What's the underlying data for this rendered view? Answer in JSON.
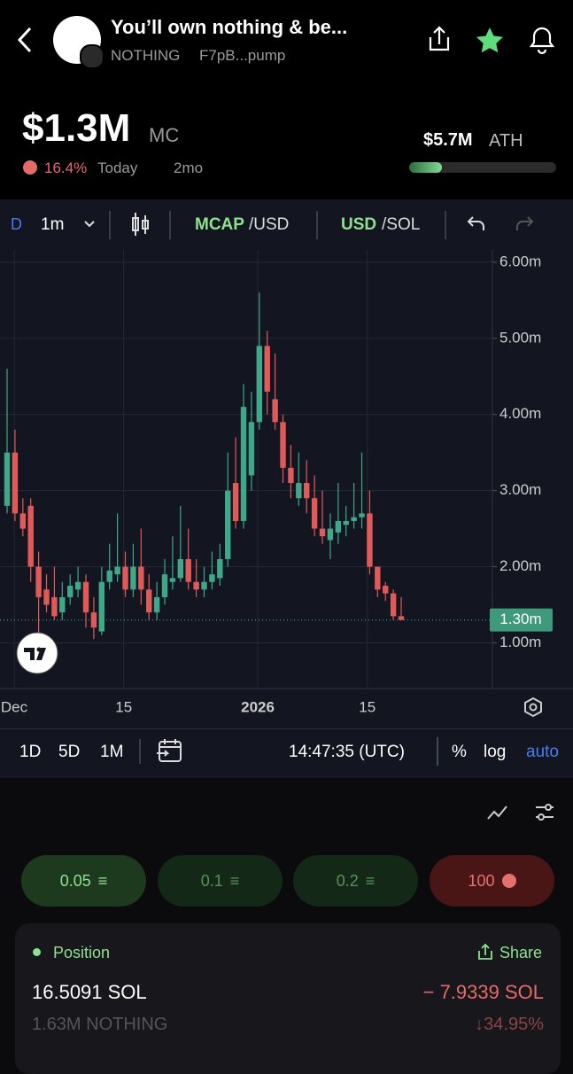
{
  "header": {
    "title": "You’ll own nothing & be...",
    "ticker": "NOTHING",
    "address": "F7pB...pump",
    "market_cap": "$1.3M",
    "market_cap_label": "MC",
    "change": "16.4%",
    "period": "Today",
    "age": "2mo",
    "ath": "$5.7M",
    "ath_label": "ATH"
  },
  "toolbar": {
    "series_prefix": "D",
    "interval": "1m",
    "mcap": "MCAP",
    "mcap_quote": "/USD",
    "usd": "USD",
    "usd_quote": "/SOL"
  },
  "chart_data": {
    "type": "candlestick",
    "open": [
      2.8,
      3.5,
      2.7,
      2.8,
      2.0,
      1.7,
      1.6,
      1.4,
      1.6,
      1.7,
      1.8,
      1.4,
      1.15,
      1.8,
      1.9,
      2.0,
      1.7,
      2.0,
      1.7,
      1.4,
      1.6,
      1.8,
      1.85,
      2.1,
      1.8,
      1.7,
      1.8,
      1.85,
      2.1,
      3.1,
      2.6,
      3.2,
      3.9,
      4.9,
      4.2,
      3.9,
      3.3,
      2.9,
      3.1,
      2.9,
      2.5,
      2.35,
      2.45,
      2.55,
      2.6,
      2.65,
      2.7,
      2.0,
      1.75,
      1.65,
      1.35
    ],
    "high": [
      4.6,
      3.8,
      2.9,
      2.9,
      2.2,
      1.9,
      2.0,
      1.8,
      1.9,
      2.0,
      1.9,
      1.6,
      2.0,
      2.3,
      2.7,
      2.2,
      2.3,
      2.5,
      1.9,
      1.8,
      2.1,
      2.4,
      2.8,
      2.5,
      2.1,
      2.0,
      2.2,
      2.3,
      3.5,
      3.7,
      4.4,
      4.3,
      5.6,
      5.1,
      4.8,
      4.0,
      3.6,
      3.5,
      3.4,
      3.2,
      3.0,
      2.7,
      3.1,
      2.8,
      3.1,
      3.5,
      3.0,
      2.0,
      1.8,
      1.7,
      1.6
    ],
    "low": [
      2.7,
      2.6,
      2.4,
      1.8,
      1.1,
      1.4,
      1.3,
      1.3,
      1.5,
      1.6,
      1.2,
      1.05,
      1.1,
      1.7,
      1.8,
      1.6,
      1.6,
      1.5,
      1.3,
      1.3,
      1.5,
      1.7,
      1.8,
      1.7,
      1.6,
      1.6,
      1.7,
      1.75,
      2.0,
      2.5,
      2.5,
      3.0,
      3.8,
      4.0,
      3.8,
      3.1,
      2.9,
      2.8,
      2.7,
      2.4,
      2.3,
      2.1,
      2.3,
      2.4,
      2.5,
      2.5,
      1.9,
      1.6,
      1.55,
      1.3,
      1.3
    ],
    "close": [
      3.5,
      2.7,
      2.5,
      2.0,
      1.6,
      1.5,
      1.35,
      1.6,
      1.75,
      1.8,
      1.4,
      1.2,
      1.8,
      1.95,
      2.0,
      1.7,
      2.0,
      1.7,
      1.4,
      1.6,
      1.9,
      1.85,
      2.1,
      1.8,
      1.7,
      1.8,
      1.9,
      2.1,
      3.0,
      2.6,
      4.1,
      3.9,
      4.9,
      4.3,
      3.9,
      3.3,
      3.1,
      3.1,
      2.9,
      2.5,
      2.4,
      2.5,
      2.6,
      2.6,
      2.65,
      2.7,
      2.0,
      1.7,
      1.65,
      1.35,
      1.3
    ],
    "up_color": "#3fa889",
    "down_color": "#e05a5a",
    "ylim": [
      0.4,
      6.15
    ],
    "yticks": [
      {
        "value": 1,
        "label": "1.00m"
      },
      {
        "value": 2,
        "label": "2.00m"
      },
      {
        "value": 3,
        "label": "3.00m"
      },
      {
        "value": 4,
        "label": "4.00m"
      },
      {
        "value": 5,
        "label": "5.00m"
      },
      {
        "value": 6,
        "label": "6.00m"
      }
    ],
    "xlim": [
      -0.9,
      61.57
    ],
    "xticks": [
      {
        "value": 0.9,
        "label": "Dec"
      },
      {
        "value": 14.8,
        "label": "15"
      },
      {
        "value": 31.8,
        "label": "2026"
      },
      {
        "value": 45.7,
        "label": "15"
      }
    ],
    "last_price": {
      "value": 1.3,
      "label": "1.30m"
    },
    "grid": true
  },
  "timebar": {
    "ranges": [
      "1D",
      "5D",
      "1M"
    ],
    "time": "14:47:35 (UTC)",
    "percent": "%",
    "log": "log",
    "auto": "auto"
  },
  "trade": {
    "buttons": [
      "0.05",
      "0.1",
      "0.2",
      "100"
    ]
  },
  "position": {
    "label": "Position",
    "share": "Share",
    "amount": "16.5091 SOL",
    "pnl": "− 7.9339 SOL",
    "tokens": "1.63M NOTHING",
    "pnl_percent": "↓34.95%"
  }
}
